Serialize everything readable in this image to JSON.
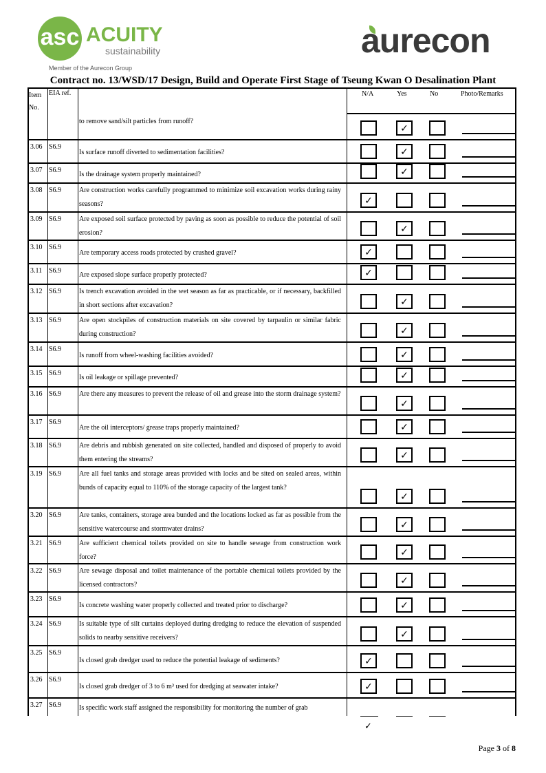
{
  "header": {
    "acuity_logo": {
      "mark": "asc",
      "name": "ACUITY",
      "sub": "sustainability",
      "member": "Member of the Aurecon Group"
    },
    "aurecon_logo": "aurecon",
    "title": "Contract no.  13/WSD/17 Design, Build and Operate First Stage of Tseung Kwan O Desalination Plant"
  },
  "table": {
    "headers": {
      "item": "Item No.",
      "eia": "EIA ref.",
      "na": "N/A",
      "yes": "Yes",
      "no": "No",
      "remarks": "Photo/Remarks"
    },
    "check_mark": "✓",
    "rows": [
      {
        "item": "",
        "eia": "",
        "question": "to remove sand/silt particles from runoff?",
        "answer": "yes"
      },
      {
        "item": "3.06",
        "eia": "S6.9",
        "question": "Is surface runoff diverted to sedimentation facilities?",
        "answer": "yes"
      },
      {
        "item": "3.07",
        "eia": "S6.9",
        "question": "Is the drainage system properly maintained?",
        "answer": "yes"
      },
      {
        "item": "3.08",
        "eia": "S6.9",
        "question": "Are construction works carefully programmed to minimize soil excavation works during rainy seasons?",
        "answer": "na"
      },
      {
        "item": "3.09",
        "eia": "S6.9",
        "question": "Are exposed soil surface protected by paving as soon as possible to reduce the potential of soil erosion?",
        "answer": "yes"
      },
      {
        "item": "3.10",
        "eia": "S6.9",
        "question": "Are temporary access roads protected by crushed gravel?",
        "answer": "na"
      },
      {
        "item": "3.11",
        "eia": "S6.9",
        "question": "Are exposed slope surface properly protected?",
        "answer": "na"
      },
      {
        "item": "3.12",
        "eia": "S6.9",
        "question": "Is trench excavation avoided in the wet season as far as practicable, or if necessary, backfilled in short sections after excavation?",
        "answer": "yes"
      },
      {
        "item": "3.13",
        "eia": "S6.9",
        "question": "Are open stockpiles of construction materials on site covered by tarpaulin or similar fabric during construction?",
        "answer": "yes"
      },
      {
        "item": "3.14",
        "eia": "S6.9",
        "question": "Is runoff from wheel-washing facilities avoided?",
        "answer": "yes"
      },
      {
        "item": "3.15",
        "eia": "S6.9",
        "question": "Is oil leakage or spillage prevented?",
        "answer": "yes"
      },
      {
        "item": "3.16",
        "eia": "S6.9",
        "question": "Are there any measures to prevent the release of oil and grease into the storm drainage system?",
        "answer": "yes"
      },
      {
        "item": "3.17",
        "eia": "S6.9",
        "question": "Are the oil interceptors/ grease traps properly maintained?",
        "answer": "yes"
      },
      {
        "item": "3.18",
        "eia": "S6.9",
        "question": "Are debris and rubbish generated on site collected, handled and disposed of properly to avoid them entering the streams?",
        "answer": "yes"
      },
      {
        "item": "3.19",
        "eia": "S6.9",
        "question": "Are all fuel tanks and storage areas provided with locks and be sited on sealed areas, within bunds of capacity equal to 110% of the storage capacity of the largest tank?",
        "answer": "yes"
      },
      {
        "item": "3.20",
        "eia": "S6.9",
        "question": "Are tanks, containers, storage area bunded and the locations locked as far as possible from the sensitive watercourse and stormwater drains?",
        "answer": "yes"
      },
      {
        "item": "3.21",
        "eia": "S6.9",
        "question": "Are sufficient chemical toilets provided on site to handle sewage from construction work force?",
        "answer": "yes"
      },
      {
        "item": "3.22",
        "eia": "S6.9",
        "question": "Are sewage disposal and toilet maintenance of the portable chemical toilets provided by the licensed contractors?",
        "answer": "yes"
      },
      {
        "item": "3.23",
        "eia": "S6.9",
        "question": "Is concrete washing water properly collected and treated prior to discharge?",
        "answer": "yes"
      },
      {
        "item": "3.24",
        "eia": "S6.9",
        "question": "Is suitable type of silt curtains deployed during dredging to reduce the elevation of suspended solids to nearby sensitive receivers?",
        "answer": "yes"
      },
      {
        "item": "3.25",
        "eia": "S6.9",
        "question": "Is closed grab dredger used to reduce the potential leakage of sediments?",
        "answer": "na"
      },
      {
        "item": "3.26",
        "eia": "S6.9",
        "question": "Is closed grab dredger of 3 to 6 m³ used for dredging at seawater intake?",
        "answer": "na"
      },
      {
        "item": "3.27",
        "eia": "S6.9",
        "question": "Is specific work staff assigned the responsibility for monitoring the number of grab",
        "answer": "na"
      }
    ]
  },
  "footer": {
    "page_label": "Page",
    "page": "3",
    "of_label": "of",
    "total": "8"
  }
}
